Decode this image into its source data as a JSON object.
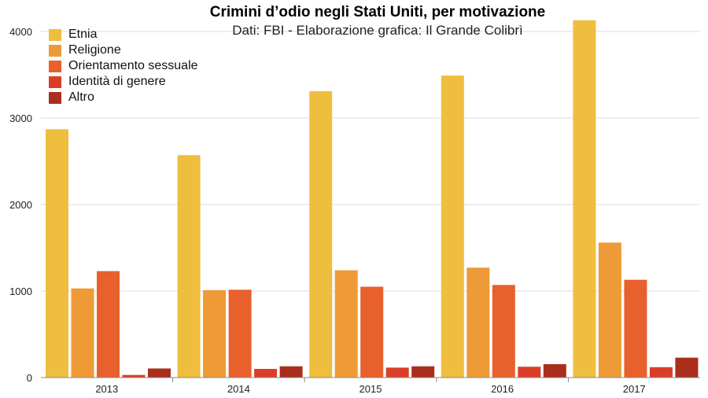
{
  "chart_data": {
    "type": "bar",
    "title": "Crimini d’odio negli Stati Uniti, per motivazione",
    "subtitle": "Dati: FBI - Elaborazione grafica: Il Grande Colibrì",
    "categories": [
      "2013",
      "2014",
      "2015",
      "2016",
      "2017"
    ],
    "yticks": [
      "0",
      "1000",
      "2000",
      "3000",
      "4000"
    ],
    "ylim": [
      0,
      4200
    ],
    "grid": true,
    "legend_position": "top-left",
    "series": [
      {
        "name": "Etnia",
        "color": "#F0BE3E",
        "values": [
          2870,
          2570,
          3310,
          3490,
          4130
        ]
      },
      {
        "name": "Religione",
        "color": "#EE9A37",
        "values": [
          1030,
          1010,
          1240,
          1270,
          1560
        ]
      },
      {
        "name": "Orientamento sessuale",
        "color": "#E8602B",
        "values": [
          1230,
          1015,
          1050,
          1070,
          1130
        ]
      },
      {
        "name": "Identità di genere",
        "color": "#DB3E28",
        "values": [
          30,
          100,
          115,
          125,
          120
        ]
      },
      {
        "name": "Altro",
        "color": "#AA2E1C",
        "values": [
          105,
          130,
          130,
          155,
          230
        ]
      }
    ]
  }
}
